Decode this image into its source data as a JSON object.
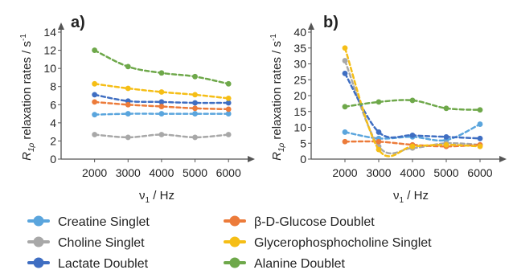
{
  "chart_data": [
    {
      "type": "line",
      "panel_label": "a)",
      "x": [
        2000,
        3000,
        4000,
        5000,
        6000
      ],
      "xlim": [
        1000,
        6500
      ],
      "ylim": [
        0,
        14
      ],
      "xticks": [
        2000,
        3000,
        4000,
        5000,
        6000
      ],
      "yticks": [
        0,
        2,
        4,
        6,
        8,
        10,
        12,
        14
      ],
      "xlabel_main": "ν",
      "xlabel_sub": "1",
      "xlabel_rest": " / Hz",
      "ylabel_main": "R",
      "ylabel_sub": "1ρ",
      "ylabel_rest": " relaxation rates / s",
      "ylabel_sup": "-1",
      "grid": false,
      "series": [
        {
          "name": "Creatine Singlet",
          "values": [
            4.9,
            5.0,
            5.0,
            5.0,
            5.0
          ]
        },
        {
          "name": "Choline Singlet",
          "values": [
            2.7,
            2.4,
            2.7,
            2.4,
            2.7
          ]
        },
        {
          "name": "Lactate Doublet",
          "values": [
            7.1,
            6.4,
            6.3,
            6.2,
            6.2
          ]
        },
        {
          "name": "β-D-Glucose Doublet",
          "values": [
            6.3,
            6.0,
            5.8,
            5.6,
            5.5
          ]
        },
        {
          "name": "Glycerophosphocholine Singlet",
          "values": [
            8.3,
            7.8,
            7.4,
            7.1,
            6.7
          ]
        },
        {
          "name": "Alanine Doublet",
          "values": [
            12.0,
            10.2,
            9.5,
            9.1,
            8.3
          ]
        }
      ]
    },
    {
      "type": "line",
      "panel_label": "b)",
      "x": [
        2000,
        3000,
        4000,
        5000,
        6000
      ],
      "xlim": [
        1000,
        6500
      ],
      "ylim": [
        0,
        40
      ],
      "xticks": [
        2000,
        3000,
        4000,
        5000,
        6000
      ],
      "yticks": [
        0,
        5,
        10,
        15,
        20,
        25,
        30,
        35,
        40
      ],
      "xlabel_main": "ν",
      "xlabel_sub": "1",
      "xlabel_rest": " / Hz",
      "ylabel_main": "R",
      "ylabel_sub": "1ρ",
      "ylabel_rest": " relaxation rates / s",
      "ylabel_sup": "-1",
      "grid": false,
      "series": [
        {
          "name": "Creatine Singlet",
          "values": [
            8.5,
            6.5,
            7.0,
            6.0,
            11.0
          ]
        },
        {
          "name": "Choline Singlet",
          "values": [
            31.0,
            4.0,
            3.5,
            5.0,
            4.5
          ]
        },
        {
          "name": "Lactate Doublet",
          "values": [
            27.0,
            8.5,
            7.5,
            7.0,
            6.5
          ]
        },
        {
          "name": "β-D-Glucose Doublet",
          "values": [
            5.5,
            5.5,
            4.5,
            4.0,
            4.5
          ]
        },
        {
          "name": "Glycerophosphocholine Singlet",
          "values": [
            35.0,
            3.0,
            4.0,
            4.5,
            4.0
          ]
        },
        {
          "name": "Alanine Doublet",
          "values": [
            16.5,
            18.0,
            18.5,
            16.0,
            15.5
          ]
        }
      ]
    }
  ],
  "legend": {
    "placement": "bottom",
    "items": [
      {
        "label": "Creatine Singlet",
        "color": "#5aa5dd"
      },
      {
        "label": "Choline Singlet",
        "color": "#a8a8a8"
      },
      {
        "label": "Lactate Doublet",
        "color": "#3f6ec2"
      },
      {
        "label": "β-D-Glucose Doublet",
        "color": "#ec7b3a"
      },
      {
        "label": "Glycerophosphocholine Singlet",
        "color": "#f5be16"
      },
      {
        "label": "Alanine Doublet",
        "color": "#6ea84a"
      }
    ]
  }
}
